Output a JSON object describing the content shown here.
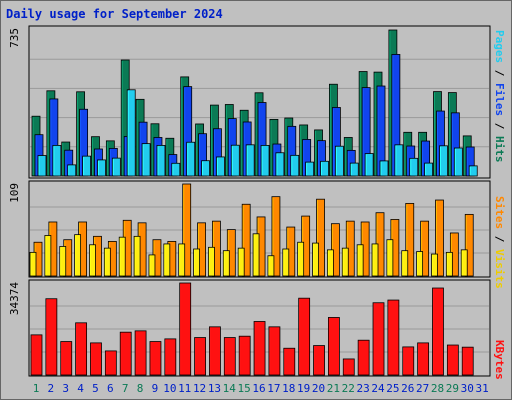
{
  "title": "Daily usage for September 2024",
  "colors": {
    "hits": "#0b7a55",
    "files": "#1144ee",
    "pages": "#22ccee",
    "visits": "#ff8800",
    "sites": "#ffee11",
    "kbytes": "#ff1111",
    "weekend_label": "#0b7a55",
    "weekday_label": "#0020c8"
  },
  "chart_data": [
    {
      "type": "bar",
      "categories": [
        "1",
        "2",
        "3",
        "4",
        "5",
        "6",
        "7",
        "8",
        "9",
        "10",
        "11",
        "12",
        "13",
        "14",
        "15",
        "16",
        "17",
        "18",
        "19",
        "20",
        "21",
        "22",
        "23",
        "24",
        "25",
        "26",
        "27",
        "28",
        "29",
        "30",
        "31"
      ],
      "weekend_days": [
        "1",
        "7",
        "8",
        "14",
        "15",
        "21",
        "22",
        "28",
        "29"
      ],
      "series": [
        {
          "name": "Hits",
          "values": [
            301,
            429,
            171,
            424,
            198,
            177,
            584,
            386,
            263,
            190,
            499,
            262,
            357,
            360,
            331,
            419,
            285,
            292,
            257,
            232,
            462,
            194,
            526,
            523,
            735,
            220,
            220,
            425,
            420,
            202,
            0
          ]
        },
        {
          "name": "Files",
          "values": [
            208,
            388,
            130,
            336,
            136,
            139,
            199,
            271,
            194,
            108,
            450,
            213,
            238,
            289,
            272,
            370,
            161,
            250,
            184,
            178,
            345,
            129,
            445,
            453,
            612,
            151,
            176,
            327,
            318,
            146,
            0
          ]
        },
        {
          "name": "Pages",
          "values": [
            103,
            154,
            56,
            100,
            81,
            90,
            434,
            163,
            154,
            64,
            170,
            77,
            96,
            155,
            157,
            154,
            117,
            104,
            70,
            74,
            150,
            65,
            113,
            76,
            157,
            89,
            65,
            152,
            141,
            51,
            0
          ]
        }
      ],
      "ylim": [
        0,
        735
      ],
      "ytick_label": "735",
      "axis_labels": {
        "hits": "Hits",
        "files": "Files",
        "pages": "Pages",
        "sep": " / "
      }
    },
    {
      "type": "bar",
      "categories": [
        "1",
        "2",
        "3",
        "4",
        "5",
        "6",
        "7",
        "8",
        "9",
        "10",
        "11",
        "12",
        "13",
        "14",
        "15",
        "16",
        "17",
        "18",
        "19",
        "20",
        "21",
        "22",
        "23",
        "24",
        "25",
        "26",
        "27",
        "28",
        "29",
        "30",
        "31"
      ],
      "series": [
        {
          "name": "Visits",
          "values": [
            40,
            64,
            43,
            64,
            47,
            41,
            66,
            63,
            43,
            41,
            109,
            63,
            65,
            55,
            85,
            70,
            94,
            58,
            71,
            91,
            62,
            65,
            64,
            75,
            67,
            86,
            65,
            90,
            51,
            73,
            0
          ]
        },
        {
          "name": "Sites",
          "values": [
            28,
            48,
            35,
            49,
            37,
            33,
            46,
            47,
            25,
            38,
            38,
            32,
            34,
            30,
            33,
            50,
            24,
            32,
            40,
            39,
            31,
            33,
            37,
            38,
            43,
            30,
            29,
            26,
            28,
            31,
            0
          ]
        }
      ],
      "ylim": [
        0,
        109
      ],
      "ytick_label": "109",
      "axis_labels": {
        "sites": "Sites",
        "visits": "Visits",
        "sep": " / "
      }
    },
    {
      "type": "bar",
      "categories": [
        "1",
        "2",
        "3",
        "4",
        "5",
        "6",
        "7",
        "8",
        "9",
        "10",
        "11",
        "12",
        "13",
        "14",
        "15",
        "16",
        "17",
        "18",
        "19",
        "20",
        "21",
        "22",
        "23",
        "24",
        "25",
        "26",
        "27",
        "28",
        "29",
        "30",
        "31"
      ],
      "series": [
        {
          "name": "KBytes",
          "values": [
            15000,
            28500,
            12500,
            19500,
            12000,
            9000,
            16000,
            16500,
            12500,
            13500,
            34374,
            14000,
            18000,
            14000,
            14500,
            20000,
            18000,
            10000,
            28700,
            11000,
            21500,
            6000,
            13000,
            27000,
            28000,
            10500,
            12000,
            32500,
            11200,
            10400,
            0
          ]
        }
      ],
      "ylim": [
        0,
        34374
      ],
      "ytick_label": "34374",
      "axis_labels": {
        "kbytes": "KBytes"
      }
    }
  ]
}
